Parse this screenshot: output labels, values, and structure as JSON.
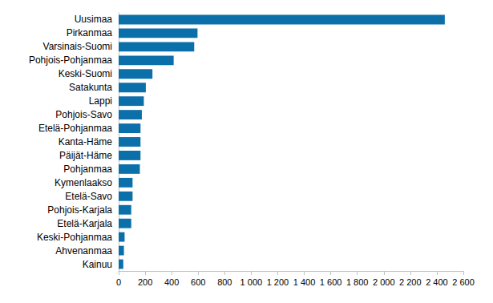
{
  "chart_data": {
    "type": "bar",
    "orientation": "horizontal",
    "categories": [
      "Uusimaa",
      "Pirkanmaa",
      "Varsinais-Suomi",
      "Pohjois-Pohjanmaa",
      "Keski-Suomi",
      "Satakunta",
      "Lappi",
      "Pohjois-Savo",
      "Etelä-Pohjanmaa",
      "Kanta-Häme",
      "Päijät-Häme",
      "Pohjanmaa",
      "Kymenlaakso",
      "Etelä-Savo",
      "Pohjois-Karjala",
      "Etelä-Karjala",
      "Keski-Pohjanmaa",
      "Ahvenanmaa",
      "Kainuu"
    ],
    "values": [
      2460,
      595,
      570,
      415,
      255,
      205,
      190,
      175,
      165,
      165,
      165,
      160,
      105,
      105,
      95,
      95,
      45,
      40,
      35
    ],
    "color": "#0b6faa",
    "xlim": [
      0,
      2600
    ],
    "xticks": [
      0,
      200,
      400,
      600,
      800,
      {
        "value": 1000,
        "label": "1 000"
      },
      {
        "value": 1200,
        "label": "1 200"
      },
      {
        "value": 1400,
        "label": "1 400"
      },
      {
        "value": 1600,
        "label": "1 600"
      },
      {
        "value": 1800,
        "label": "1 800"
      },
      {
        "value": 2000,
        "label": "2 000"
      },
      {
        "value": 2200,
        "label": "2 200"
      },
      {
        "value": 2400,
        "label": "2 400"
      },
      {
        "value": 2600,
        "label": "2 600"
      }
    ],
    "grid": false
  }
}
